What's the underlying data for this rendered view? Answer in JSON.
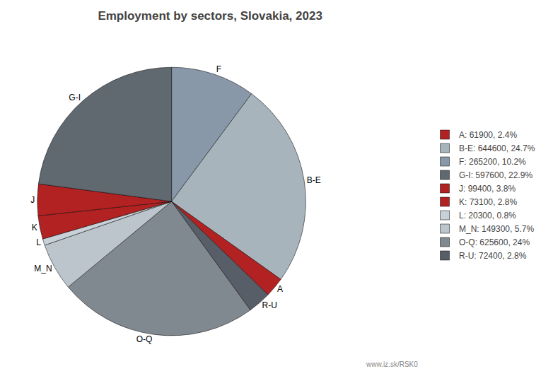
{
  "chart_data": {
    "type": "pie",
    "title": "Employment by sectors, Slovakia, 2023",
    "categories": [
      "F",
      "B-E",
      "A",
      "R-U",
      "O-Q",
      "M_N",
      "L",
      "K",
      "J",
      "G-I"
    ],
    "values": [
      265200,
      644600,
      61900,
      72400,
      625600,
      149300,
      20300,
      73100,
      99400,
      597600
    ],
    "colors": [
      "#8898a8",
      "#a8b4bc",
      "#b22222",
      "#585e68",
      "#808890",
      "#bcc4cc",
      "#c8d0d8",
      "#b22222",
      "#b22222",
      "#606870"
    ],
    "legend": "right",
    "legend_entries": [
      {
        "name": "A: 61900, 2.4%",
        "color": "#b22222"
      },
      {
        "name": "B-E: 644600, 24.7%",
        "color": "#a8b4bc"
      },
      {
        "name": "F: 265200, 10.2%",
        "color": "#8898a8"
      },
      {
        "name": "G-I: 597600, 22.9%",
        "color": "#606870"
      },
      {
        "name": "J: 99400, 3.8%",
        "color": "#b22222"
      },
      {
        "name": "K: 73100, 2.8%",
        "color": "#b22222"
      },
      {
        "name": "L: 20300, 0.8%",
        "color": "#c8d0d8"
      },
      {
        "name": "M_N: 149300, 5.7%",
        "color": "#bcc4cc"
      },
      {
        "name": "O-Q: 625600, 24%",
        "color": "#808890"
      },
      {
        "name": "R-U: 72400, 2.8%",
        "color": "#585e68"
      }
    ],
    "annotations": [
      "www.iz.sk/RSK0"
    ]
  }
}
